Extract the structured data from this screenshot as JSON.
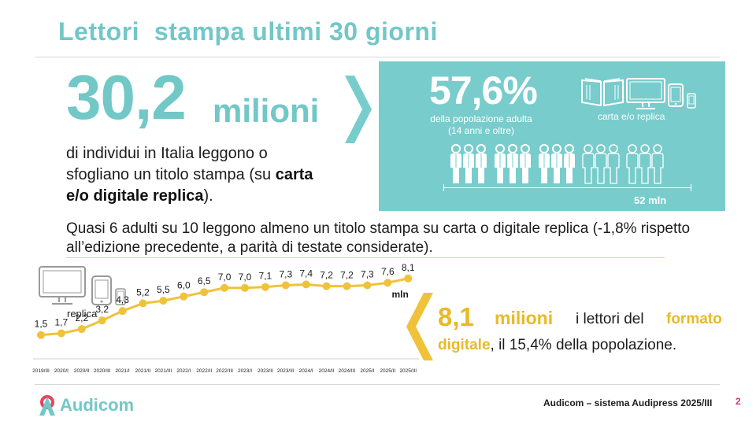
{
  "header": {
    "title": "Lettori  stampa ultimi 30 giorni"
  },
  "hero": {
    "value": "30,2",
    "unit": "milioni",
    "desc_before": "di individui in Italia leggono o sfogliano un titolo stampa (su ",
    "desc_bold": "carta e/o digitale replica",
    "desc_after": ")."
  },
  "population_box": {
    "percent": "57,6%",
    "percent_sub_line1": "della popolazione adulta",
    "percent_sub_line2": "(14 anni e oltre)",
    "devices_label": "carta e/o replica",
    "total_label": "52 mln",
    "people_filled_groups": 3,
    "people_outline_groups": 2,
    "icons": [
      "book-icon",
      "monitor-icon",
      "tablet-icon",
      "smartphone-icon",
      "people-icon"
    ]
  },
  "paragraph": "Quasi 6 adulti su 10 leggono almeno un titolo stampa su carta o digitale replica (-1,8% rispetto all’edizione precedente, a parità di testate considerate).",
  "replica_label": "replica",
  "digital": {
    "value": "8,1",
    "unit": "milioni",
    "text_part1": "i lettori del",
    "text_part2": "formato",
    "line2_bold": "digitale",
    "line2_rest": ", il 15,4% della popolazione."
  },
  "chart_data": {
    "type": "line",
    "categories": [
      "2019/III",
      "2020/I",
      "2020/II",
      "2020/III",
      "2021/I",
      "2021/II",
      "2021/III",
      "2022/I",
      "2022/II",
      "2022/III",
      "2023/I",
      "2023/II",
      "2023/III",
      "2024/I",
      "2024/II",
      "2024/III",
      "2025/I",
      "2025/II",
      "2025/III"
    ],
    "values": [
      1.5,
      1.7,
      2.2,
      3.2,
      4.3,
      5.2,
      5.5,
      6.0,
      6.5,
      7.0,
      7.0,
      7.1,
      7.3,
      7.4,
      7.2,
      7.2,
      7.3,
      7.6,
      8.1
    ],
    "value_labels": [
      "1,5",
      "1,7",
      "2,2",
      "3,2",
      "4,3",
      "5,2",
      "5,5",
      "6,0",
      "6,5",
      "7,0",
      "7,0",
      "7,1",
      "7,3",
      "7,4",
      "7,2",
      "7,2",
      "7,3",
      "7,6",
      "8,1"
    ],
    "unit_label": "mln",
    "ylim": [
      0,
      9
    ],
    "grid": false,
    "color": "#f0c23a"
  },
  "footer": {
    "logo_text": "Audicom",
    "source": "Audicom – sistema Audipress 2025/III",
    "page": "2"
  },
  "colors": {
    "teal": "#72c7c7",
    "teal_box": "#79cccc",
    "gold": "#f0c23a",
    "gold_text": "#e9b927",
    "page_number": "#d6336c"
  }
}
